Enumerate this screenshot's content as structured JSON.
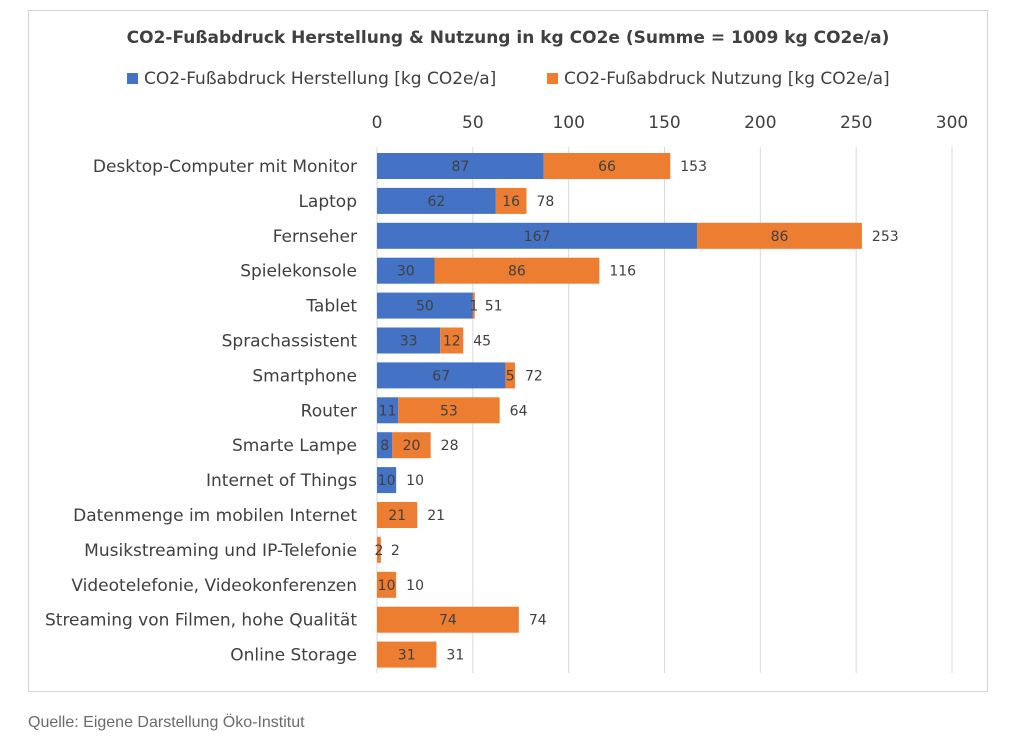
{
  "chart_data": {
    "type": "bar",
    "orientation": "horizontal",
    "stacked": true,
    "title": "CO2-Fußabdruck Herstellung & Nutzung in kg CO2e (Summe = 1009 kg CO2e/a)",
    "legend_position": "top",
    "grid": true,
    "xlim": [
      0,
      300
    ],
    "x_ticks": [
      0,
      50,
      100,
      150,
      200,
      250,
      300
    ],
    "categories": [
      "Desktop-Computer mit Monitor",
      "Laptop",
      "Fernseher",
      "Spielekonsole",
      "Tablet",
      "Sprachassistent",
      "Smartphone",
      "Router",
      "Smarte Lampe",
      "Internet of Things",
      "Datenmenge im mobilen Internet",
      "Musikstreaming und IP-Telefonie",
      "Videotelefonie, Videokonferenzen",
      "Streaming von Filmen, hohe Qualität",
      "Online Storage"
    ],
    "series": [
      {
        "name": "CO2-Fußabdruck Herstellung [kg CO2e/a]",
        "color": "#4472c4",
        "values": [
          87,
          62,
          167,
          30,
          50,
          33,
          67,
          11,
          8,
          10,
          0,
          0,
          0,
          0,
          0
        ]
      },
      {
        "name": "CO2-Fußabdruck Nutzung  [kg CO2e/a]",
        "color": "#ed7d31",
        "values": [
          66,
          16,
          86,
          86,
          1,
          12,
          5,
          53,
          20,
          0,
          21,
          2,
          10,
          74,
          31
        ]
      }
    ],
    "totals": [
      153,
      78,
      253,
      116,
      51,
      45,
      72,
      64,
      28,
      10,
      21,
      2,
      10,
      74,
      31
    ]
  },
  "source_note": "Quelle: Eigene Darstellung Öko-Institut"
}
